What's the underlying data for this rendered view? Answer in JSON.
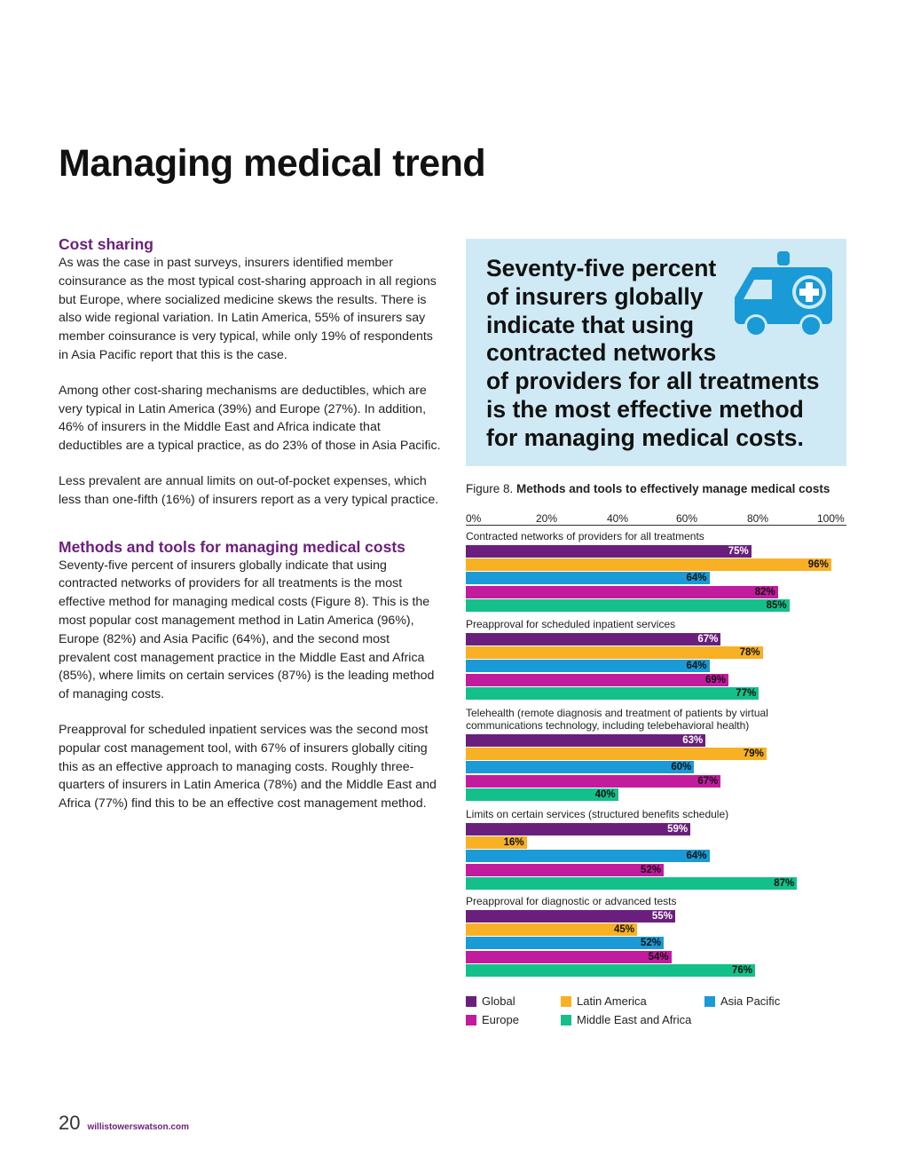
{
  "page": {
    "title": "Managing medical trend",
    "page_number": "20",
    "url": "willistowerswatson.com"
  },
  "cost_sharing": {
    "heading": "Cost sharing",
    "p1": "As was the case in past surveys, insurers identified member coinsurance as the most typical cost-sharing approach in all regions but Europe, where socialized medicine skews the results. There is also wide regional variation. In Latin America, 55% of insurers say member coinsurance is very typical, while only 19% of respondents in Asia Pacific report that this is the case.",
    "p2": "Among other cost-sharing mechanisms are deductibles, which are very typical in Latin America (39%) and Europe (27%). In addition, 46% of insurers in the Middle East and Africa indicate that deductibles are a typical practice, as do 23% of those in Asia Pacific.",
    "p3": "Less prevalent are annual limits on out-of-pocket expenses, which less than one-fifth (16%) of insurers report as a very typical practice."
  },
  "methods": {
    "heading": "Methods and tools for managing medical costs",
    "p1": "Seventy-five percent of insurers globally indicate that using contracted networks of providers for all treatments is the most effective method for managing medical costs (Figure 8). This is the most popular cost management method in Latin America (96%), Europe (82%) and Asia Pacific (64%), and the second most prevalent cost management practice in the Middle East and Africa (85%), where limits on certain services (87%) is the leading method of managing costs.",
    "p2": "Preapproval for scheduled inpatient services was the second most popular cost management tool, with 67% of insurers globally citing this as an effective approach to managing costs. Roughly three-quarters of insurers in Latin America (78%) and the Middle East and Africa (77%) find this to be an effective cost management method."
  },
  "callout": {
    "text": "Seventy-five percent\nof insurers globally\nindicate that using\ncontracted networks\nof providers for all treatments\nis the most effective method\nfor managing medical costs.",
    "icon": "ambulance-icon",
    "background": "#cfeaf4",
    "icon_color": "#1a9ad6"
  },
  "figure": {
    "label": "Figure 8.",
    "title": "Methods and tools to effectively manage medical costs"
  },
  "chart_data": {
    "type": "bar",
    "orientation": "horizontal",
    "title": "Methods and tools to effectively manage medical costs",
    "x_ticks": [
      "0%",
      "20%",
      "40%",
      "60%",
      "80%",
      "100%"
    ],
    "xlim": [
      0,
      100
    ],
    "categories": [
      "Contracted networks of providers for all treatments",
      "Preapproval for scheduled inpatient services",
      "Telehealth (remote diagnosis and treatment of patients by virtual communications technology, including telebehavioral health)",
      "Limits on certain services (structured benefits schedule)",
      "Preapproval for diagnostic or advanced tests"
    ],
    "series": [
      {
        "name": "Global",
        "color": "#6b1f7c",
        "label_color": "#ffffff",
        "values": [
          75,
          67,
          63,
          59,
          55
        ]
      },
      {
        "name": "Latin America",
        "color": "#f8b124",
        "label_color": "#111111",
        "values": [
          96,
          78,
          79,
          16,
          45
        ]
      },
      {
        "name": "Asia Pacific",
        "color": "#1a9ad6",
        "label_color": "#111111",
        "values": [
          64,
          64,
          60,
          64,
          52
        ]
      },
      {
        "name": "Europe",
        "color": "#c21b9e",
        "label_color": "#111111",
        "values": [
          82,
          69,
          67,
          52,
          54
        ]
      },
      {
        "name": "Middle East and Africa",
        "color": "#13c08a",
        "label_color": "#111111",
        "values": [
          85,
          77,
          40,
          87,
          76
        ]
      }
    ],
    "legend_order": [
      "Global",
      "Latin America",
      "Asia Pacific",
      "Europe",
      "Middle East and Africa"
    ],
    "legend_position": "bottom"
  }
}
